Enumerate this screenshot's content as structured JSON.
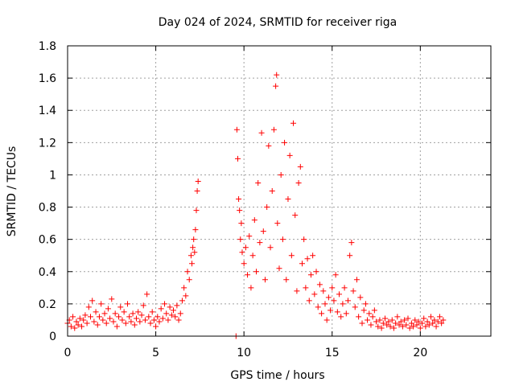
{
  "chart_data": {
    "type": "scatter",
    "title": "Day 024 of 2024, SRMTID for receiver riga",
    "xlabel": "GPS time / hours",
    "ylabel": "SRMTID / TECUs",
    "xlim": [
      0,
      24
    ],
    "ylim": [
      0,
      1.8
    ],
    "xticks": [
      0,
      5,
      10,
      15,
      20
    ],
    "xtick_labels": [
      "0",
      "5",
      "10",
      "15",
      "20"
    ],
    "yticks": [
      0,
      0.2,
      0.4,
      0.6,
      0.8,
      1,
      1.2,
      1.4,
      1.6,
      1.8
    ],
    "ytick_labels": [
      "0",
      "0.2",
      "0.4",
      "0.6",
      "0.8",
      "1",
      "1.2",
      "1.4",
      "1.6",
      "1.8"
    ],
    "grid": true,
    "marker": "plus",
    "color": "#ff0000",
    "series": [
      {
        "name": "SRMTID",
        "points": [
          [
            0.0,
            0.08
          ],
          [
            0.1,
            0.1
          ],
          [
            0.2,
            0.06
          ],
          [
            0.3,
            0.12
          ],
          [
            0.4,
            0.05
          ],
          [
            0.5,
            0.09
          ],
          [
            0.6,
            0.07
          ],
          [
            0.7,
            0.11
          ],
          [
            0.8,
            0.06
          ],
          [
            0.9,
            0.1
          ],
          [
            1.0,
            0.13
          ],
          [
            1.1,
            0.08
          ],
          [
            1.2,
            0.18
          ],
          [
            1.3,
            0.12
          ],
          [
            1.4,
            0.22
          ],
          [
            1.5,
            0.09
          ],
          [
            1.6,
            0.15
          ],
          [
            1.7,
            0.07
          ],
          [
            1.8,
            0.12
          ],
          [
            1.9,
            0.2
          ],
          [
            2.0,
            0.1
          ],
          [
            2.1,
            0.14
          ],
          [
            2.2,
            0.08
          ],
          [
            2.3,
            0.17
          ],
          [
            2.4,
            0.11
          ],
          [
            2.5,
            0.23
          ],
          [
            2.6,
            0.09
          ],
          [
            2.7,
            0.14
          ],
          [
            2.8,
            0.06
          ],
          [
            2.9,
            0.12
          ],
          [
            3.0,
            0.18
          ],
          [
            3.1,
            0.1
          ],
          [
            3.2,
            0.15
          ],
          [
            3.3,
            0.08
          ],
          [
            3.4,
            0.2
          ],
          [
            3.5,
            0.12
          ],
          [
            3.6,
            0.09
          ],
          [
            3.7,
            0.14
          ],
          [
            3.8,
            0.07
          ],
          [
            3.9,
            0.11
          ],
          [
            4.0,
            0.15
          ],
          [
            4.1,
            0.09
          ],
          [
            4.2,
            0.13
          ],
          [
            4.3,
            0.19
          ],
          [
            4.4,
            0.1
          ],
          [
            4.5,
            0.26
          ],
          [
            4.6,
            0.12
          ],
          [
            4.7,
            0.08
          ],
          [
            4.8,
            0.15
          ],
          [
            4.9,
            0.1
          ],
          [
            5.0,
            0.06
          ],
          [
            5.1,
            0.12
          ],
          [
            5.2,
            0.09
          ],
          [
            5.3,
            0.17
          ],
          [
            5.4,
            0.11
          ],
          [
            5.5,
            0.2
          ],
          [
            5.6,
            0.14
          ],
          [
            5.7,
            0.1
          ],
          [
            5.8,
            0.18
          ],
          [
            5.9,
            0.13
          ],
          [
            6.0,
            0.16
          ],
          [
            6.1,
            0.12
          ],
          [
            6.2,
            0.19
          ],
          [
            6.3,
            0.1
          ],
          [
            6.4,
            0.14
          ],
          [
            6.5,
            0.22
          ],
          [
            6.6,
            0.3
          ],
          [
            6.7,
            0.25
          ],
          [
            6.8,
            0.4
          ],
          [
            6.9,
            0.35
          ],
          [
            7.0,
            0.5
          ],
          [
            7.05,
            0.45
          ],
          [
            7.1,
            0.55
          ],
          [
            7.15,
            0.6
          ],
          [
            7.2,
            0.52
          ],
          [
            7.25,
            0.66
          ],
          [
            7.3,
            0.78
          ],
          [
            7.35,
            0.9
          ],
          [
            7.4,
            0.96
          ],
          [
            9.55,
            0.0
          ],
          [
            9.6,
            1.28
          ],
          [
            9.65,
            1.1
          ],
          [
            9.7,
            0.85
          ],
          [
            9.75,
            0.78
          ],
          [
            9.8,
            0.6
          ],
          [
            9.85,
            0.7
          ],
          [
            9.9,
            0.52
          ],
          [
            10.0,
            0.45
          ],
          [
            10.1,
            0.55
          ],
          [
            10.2,
            0.38
          ],
          [
            10.3,
            0.62
          ],
          [
            10.4,
            0.3
          ],
          [
            10.5,
            0.5
          ],
          [
            10.6,
            0.72
          ],
          [
            10.7,
            0.4
          ],
          [
            10.8,
            0.95
          ],
          [
            10.9,
            0.58
          ],
          [
            11.0,
            1.26
          ],
          [
            11.1,
            0.65
          ],
          [
            11.2,
            0.35
          ],
          [
            11.3,
            0.8
          ],
          [
            11.4,
            1.18
          ],
          [
            11.5,
            0.55
          ],
          [
            11.6,
            0.9
          ],
          [
            11.7,
            1.28
          ],
          [
            11.8,
            1.55
          ],
          [
            11.85,
            1.62
          ],
          [
            11.9,
            0.7
          ],
          [
            12.0,
            0.42
          ],
          [
            12.1,
            1.0
          ],
          [
            12.2,
            0.6
          ],
          [
            12.3,
            1.2
          ],
          [
            12.4,
            0.35
          ],
          [
            12.5,
            0.85
          ],
          [
            12.6,
            1.12
          ],
          [
            12.7,
            0.5
          ],
          [
            12.8,
            1.32
          ],
          [
            12.9,
            0.75
          ],
          [
            13.0,
            0.28
          ],
          [
            13.1,
            0.95
          ],
          [
            13.2,
            1.05
          ],
          [
            13.3,
            0.45
          ],
          [
            13.4,
            0.6
          ],
          [
            13.5,
            0.3
          ],
          [
            13.6,
            0.48
          ],
          [
            13.7,
            0.22
          ],
          [
            13.8,
            0.38
          ],
          [
            13.9,
            0.5
          ],
          [
            14.0,
            0.26
          ],
          [
            14.1,
            0.4
          ],
          [
            14.2,
            0.18
          ],
          [
            14.3,
            0.32
          ],
          [
            14.4,
            0.14
          ],
          [
            14.5,
            0.28
          ],
          [
            14.6,
            0.2
          ],
          [
            14.7,
            0.1
          ],
          [
            14.8,
            0.24
          ],
          [
            14.9,
            0.16
          ],
          [
            15.0,
            0.3
          ],
          [
            15.1,
            0.22
          ],
          [
            15.2,
            0.38
          ],
          [
            15.3,
            0.15
          ],
          [
            15.4,
            0.26
          ],
          [
            15.5,
            0.12
          ],
          [
            15.6,
            0.2
          ],
          [
            15.7,
            0.3
          ],
          [
            15.8,
            0.14
          ],
          [
            15.9,
            0.22
          ],
          [
            16.0,
            0.5
          ],
          [
            16.1,
            0.58
          ],
          [
            16.2,
            0.28
          ],
          [
            16.3,
            0.18
          ],
          [
            16.4,
            0.35
          ],
          [
            16.5,
            0.12
          ],
          [
            16.6,
            0.24
          ],
          [
            16.7,
            0.08
          ],
          [
            16.8,
            0.16
          ],
          [
            16.9,
            0.2
          ],
          [
            17.0,
            0.1
          ],
          [
            17.1,
            0.14
          ],
          [
            17.2,
            0.07
          ],
          [
            17.3,
            0.12
          ],
          [
            17.4,
            0.16
          ],
          [
            17.5,
            0.09
          ],
          [
            17.6,
            0.06
          ],
          [
            17.7,
            0.1
          ],
          [
            17.8,
            0.05
          ],
          [
            17.9,
            0.08
          ],
          [
            18.0,
            0.11
          ],
          [
            18.1,
            0.07
          ],
          [
            18.2,
            0.09
          ],
          [
            18.3,
            0.06
          ],
          [
            18.4,
            0.1
          ],
          [
            18.5,
            0.05
          ],
          [
            18.6,
            0.08
          ],
          [
            18.7,
            0.12
          ],
          [
            18.8,
            0.07
          ],
          [
            18.9,
            0.09
          ],
          [
            19.0,
            0.06
          ],
          [
            19.1,
            0.1
          ],
          [
            19.2,
            0.07
          ],
          [
            19.3,
            0.11
          ],
          [
            19.4,
            0.05
          ],
          [
            19.5,
            0.08
          ],
          [
            19.6,
            0.06
          ],
          [
            19.7,
            0.1
          ],
          [
            19.8,
            0.07
          ],
          [
            19.9,
            0.09
          ],
          [
            20.0,
            0.05
          ],
          [
            20.1,
            0.08
          ],
          [
            20.2,
            0.11
          ],
          [
            20.3,
            0.06
          ],
          [
            20.4,
            0.09
          ],
          [
            20.5,
            0.07
          ],
          [
            20.6,
            0.12
          ],
          [
            20.7,
            0.08
          ],
          [
            20.8,
            0.1
          ],
          [
            20.9,
            0.06
          ],
          [
            21.0,
            0.09
          ],
          [
            21.1,
            0.12
          ],
          [
            21.2,
            0.08
          ],
          [
            21.3,
            0.1
          ]
        ]
      }
    ]
  }
}
